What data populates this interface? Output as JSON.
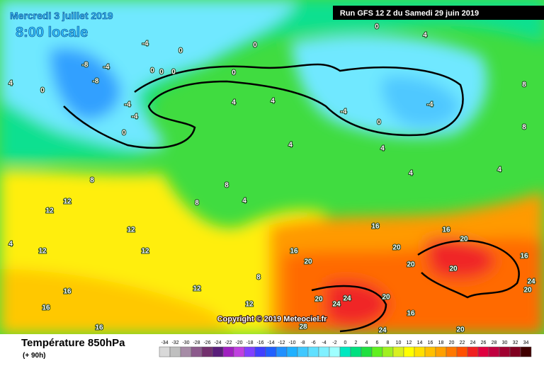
{
  "header": {
    "valid_date": "Mercredi 3 juillet 2019",
    "local_time": "8:00 locale",
    "run": "Run GFS 12 Z du Samedi 29 juin 2019"
  },
  "copyright": "Copyright © 2019 Meteociel.fr",
  "footer": {
    "title": "Température 850hPa",
    "lead": "(+ 90h)"
  },
  "scale": {
    "values": [
      -34,
      -32,
      -30,
      -28,
      -26,
      -24,
      -22,
      -20,
      -18,
      -16,
      -14,
      -12,
      -10,
      -8,
      -6,
      -4,
      -2,
      0,
      2,
      4,
      6,
      8,
      10,
      12,
      14,
      16,
      18,
      20,
      22,
      24,
      26,
      28,
      30,
      32,
      34
    ],
    "colors": [
      "#d9d9d9",
      "#bfbfbf",
      "#a68ca6",
      "#8c5a8c",
      "#73306e",
      "#5a1e7a",
      "#a020c0",
      "#c040e0",
      "#8040ff",
      "#4040ff",
      "#2060ff",
      "#2090ff",
      "#20b0ff",
      "#40c8ff",
      "#60e0ff",
      "#80f0ff",
      "#a0ffff",
      "#00e8c0",
      "#00e080",
      "#20e040",
      "#60f020",
      "#a0f020",
      "#d8f020",
      "#ffff00",
      "#ffe000",
      "#ffc000",
      "#ffa000",
      "#ff7800",
      "#ff5000",
      "#f02020",
      "#e00040",
      "#c00040",
      "#a00030",
      "#800020",
      "#400000"
    ]
  },
  "contour_labels": [
    -4,
    -4,
    -8,
    -8,
    0,
    0,
    0,
    0,
    0,
    0,
    0,
    4,
    4,
    0,
    -4,
    -4,
    0,
    4,
    4,
    -4,
    -4,
    0,
    4,
    4,
    4,
    4,
    8,
    8,
    8,
    8,
    8,
    4,
    12,
    12,
    12,
    12,
    12,
    4,
    16,
    16,
    20,
    16,
    20,
    20,
    20,
    20,
    16,
    24,
    20,
    20,
    24,
    24,
    20,
    16,
    20,
    16,
    16,
    16,
    12,
    12,
    8,
    28,
    24
  ]
}
